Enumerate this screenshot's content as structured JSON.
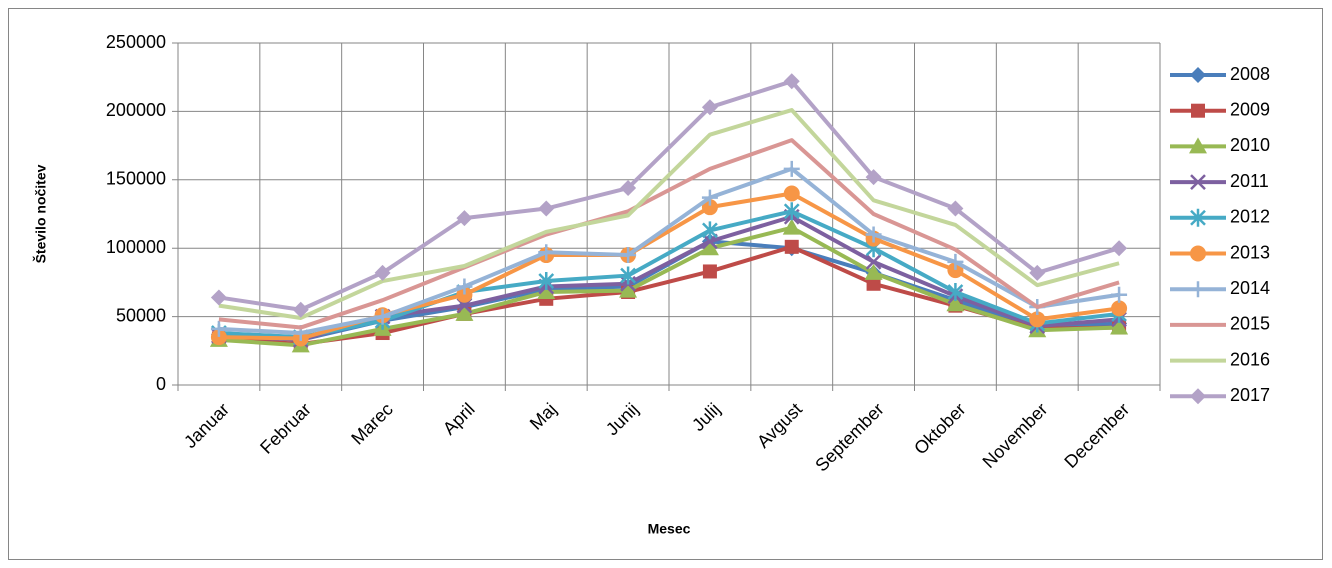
{
  "chart_data": {
    "type": "line",
    "y_label": "Število nočitev",
    "x_label": "Mesec",
    "categories": [
      "Januar",
      "Februar",
      "Marec",
      "April",
      "Maj",
      "Junij",
      "Julij",
      "Avgust",
      "September",
      "Oktober",
      "November",
      "December"
    ],
    "ylim": [
      0,
      250000
    ],
    "yticks": [
      0,
      50000,
      100000,
      150000,
      200000,
      250000
    ],
    "grid": true,
    "legend": "right",
    "series": [
      {
        "name": "2008",
        "color": "#4a7ebb",
        "marker": "diamond",
        "values": [
          37000,
          33000,
          47000,
          57000,
          70000,
          72000,
          105000,
          100000,
          82000,
          62000,
          42000,
          45000
        ]
      },
      {
        "name": "2009",
        "color": "#be4b48",
        "marker": "square",
        "values": [
          34000,
          30000,
          38000,
          52000,
          63000,
          68000,
          83000,
          101000,
          74000,
          58000,
          41000,
          42000
        ]
      },
      {
        "name": "2010",
        "color": "#98b954",
        "marker": "triangle",
        "values": [
          33000,
          29000,
          41000,
          52000,
          68000,
          69000,
          100000,
          115000,
          82000,
          59000,
          40000,
          42000
        ]
      },
      {
        "name": "2011",
        "color": "#7d60a0",
        "marker": "x",
        "values": [
          36000,
          33000,
          50000,
          58000,
          72000,
          74000,
          105000,
          123000,
          90000,
          65000,
          43000,
          48000
        ]
      },
      {
        "name": "2012",
        "color": "#46aac5",
        "marker": "star",
        "values": [
          38000,
          35000,
          47000,
          68000,
          76000,
          80000,
          113000,
          127000,
          100000,
          68000,
          45000,
          52000
        ]
      },
      {
        "name": "2013",
        "color": "#f79646",
        "marker": "circle",
        "values": [
          35000,
          34000,
          51000,
          66000,
          95000,
          95000,
          130000,
          140000,
          107000,
          84000,
          48000,
          56000
        ]
      },
      {
        "name": "2014",
        "color": "#95b3d7",
        "marker": "plus",
        "values": [
          41000,
          38000,
          50000,
          72000,
          97000,
          95000,
          137000,
          158000,
          110000,
          90000,
          57000,
          66000
        ]
      },
      {
        "name": "2015",
        "color": "#d99694",
        "marker": "none",
        "values": [
          48000,
          42000,
          62000,
          86000,
          110000,
          127000,
          158000,
          179000,
          125000,
          99000,
          57000,
          75000
        ]
      },
      {
        "name": "2016",
        "color": "#c3d69b",
        "marker": "none",
        "values": [
          58000,
          49000,
          76000,
          87000,
          112000,
          124000,
          183000,
          201000,
          135000,
          117000,
          73000,
          89000
        ]
      },
      {
        "name": "2017",
        "color": "#b3a2c7",
        "marker": "diamond",
        "values": [
          64000,
          55000,
          82000,
          122000,
          129000,
          144000,
          203000,
          222000,
          152000,
          129000,
          82000,
          100000
        ]
      }
    ]
  }
}
